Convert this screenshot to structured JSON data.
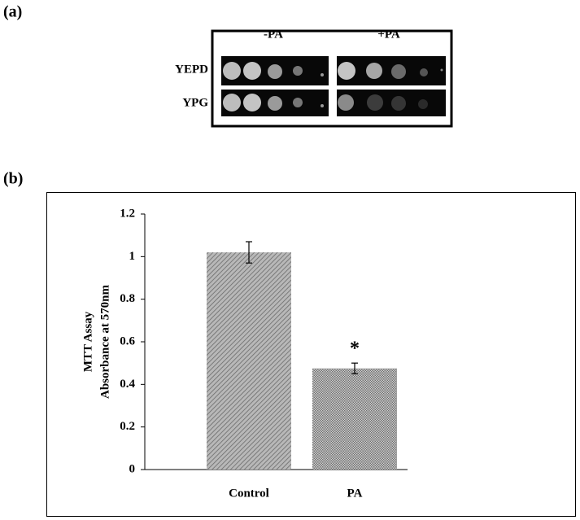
{
  "panel_a": {
    "label": "(a)",
    "columns": [
      "-PA",
      "+PA"
    ],
    "rows": [
      "YEPD",
      "YPG"
    ]
  },
  "chart_data": {
    "type": "bar",
    "panel_label": "(b)",
    "ylabel": [
      "MTT Assay",
      "Absorbance at 570nm"
    ],
    "categories": [
      "Control",
      "PA"
    ],
    "values": [
      1.02,
      0.475
    ],
    "errors": [
      0.05,
      0.025
    ],
    "ylim": [
      0,
      1.2
    ],
    "yticks": [
      0,
      0.2,
      0.4,
      0.6,
      0.8,
      1,
      1.2
    ],
    "annotations": [
      {
        "text": "*",
        "category": "PA"
      }
    ]
  }
}
